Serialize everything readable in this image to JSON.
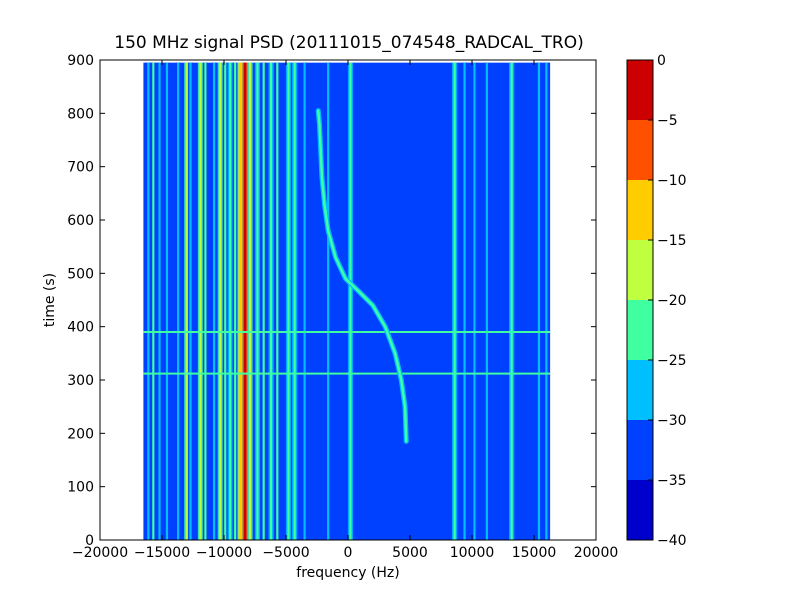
{
  "chart_data": {
    "type": "heatmap",
    "title": "150 MHz signal PSD (20111015_074548_RADCAL_TRO)",
    "xlabel": "frequency (Hz)",
    "ylabel": "time (s)",
    "xlim": [
      -20000,
      20000
    ],
    "ylim": [
      0,
      900
    ],
    "x_ticks": [
      -20000,
      -15000,
      -10000,
      -5000,
      0,
      5000,
      10000,
      15000,
      20000
    ],
    "y_ticks": [
      0,
      100,
      200,
      300,
      400,
      500,
      600,
      700,
      800,
      900
    ],
    "data_extent": {
      "x": [
        -16500,
        16300
      ],
      "y": [
        0,
        895
      ]
    },
    "grid": false,
    "colorbar": {
      "levels": [
        -40,
        -35,
        -30,
        -25,
        -20,
        -15,
        -10,
        -5,
        0
      ],
      "ticks": [
        0,
        -5,
        -10,
        -15,
        -20,
        -25,
        -30,
        -35,
        -40
      ],
      "colors": [
        "#0000cc",
        "#0040ff",
        "#00bfff",
        "#40ffa0",
        "#bfff40",
        "#ffcc00",
        "#ff5000",
        "#cc0000"
      ]
    },
    "background_level": -32,
    "vertical_lines": [
      {
        "x": -16100,
        "level": -27
      },
      {
        "x": -15700,
        "level": -25
      },
      {
        "x": -15200,
        "level": -27
      },
      {
        "x": -14600,
        "level": -28
      },
      {
        "x": -13700,
        "level": -27
      },
      {
        "x": -13000,
        "level": -18
      },
      {
        "x": -12700,
        "level": -27
      },
      {
        "x": -11900,
        "level": -17
      },
      {
        "x": -11500,
        "level": -25
      },
      {
        "x": -10800,
        "level": -27
      },
      {
        "x": -10300,
        "level": -17
      },
      {
        "x": -9900,
        "level": -25
      },
      {
        "x": -9500,
        "level": -22
      },
      {
        "x": -9100,
        "level": -25
      },
      {
        "x": -8700,
        "level": -13
      },
      {
        "x": -8300,
        "level": -4
      },
      {
        "x": -7900,
        "level": -17
      },
      {
        "x": -7300,
        "level": -22
      },
      {
        "x": -6800,
        "level": -25
      },
      {
        "x": -6200,
        "level": -22
      },
      {
        "x": -5700,
        "level": -25
      },
      {
        "x": -4800,
        "level": -22
      },
      {
        "x": -4300,
        "level": -22
      },
      {
        "x": -3500,
        "level": -27
      },
      {
        "x": -1600,
        "level": -27
      },
      {
        "x": 200,
        "level": -22
      },
      {
        "x": 8600,
        "level": -22
      },
      {
        "x": 9400,
        "level": -27
      },
      {
        "x": 10200,
        "level": -27
      },
      {
        "x": 11200,
        "level": -28
      },
      {
        "x": 13200,
        "level": -22
      },
      {
        "x": 15400,
        "level": -27
      },
      {
        "x": 16000,
        "level": -27
      }
    ],
    "horizontal_lines": [
      {
        "y": 390,
        "level": -25
      },
      {
        "y": 312,
        "level": -25
      }
    ],
    "sweep_trace": {
      "level": -22,
      "points": [
        [
          4700,
          185
        ],
        [
          4600,
          250
        ],
        [
          4300,
          300
        ],
        [
          3800,
          350
        ],
        [
          3000,
          400
        ],
        [
          2000,
          440
        ],
        [
          700,
          470
        ],
        [
          -200,
          490
        ],
        [
          -1000,
          530
        ],
        [
          -1600,
          580
        ],
        [
          -1900,
          630
        ],
        [
          -2100,
          680
        ],
        [
          -2200,
          730
        ],
        [
          -2300,
          780
        ],
        [
          -2400,
          805
        ]
      ]
    }
  }
}
